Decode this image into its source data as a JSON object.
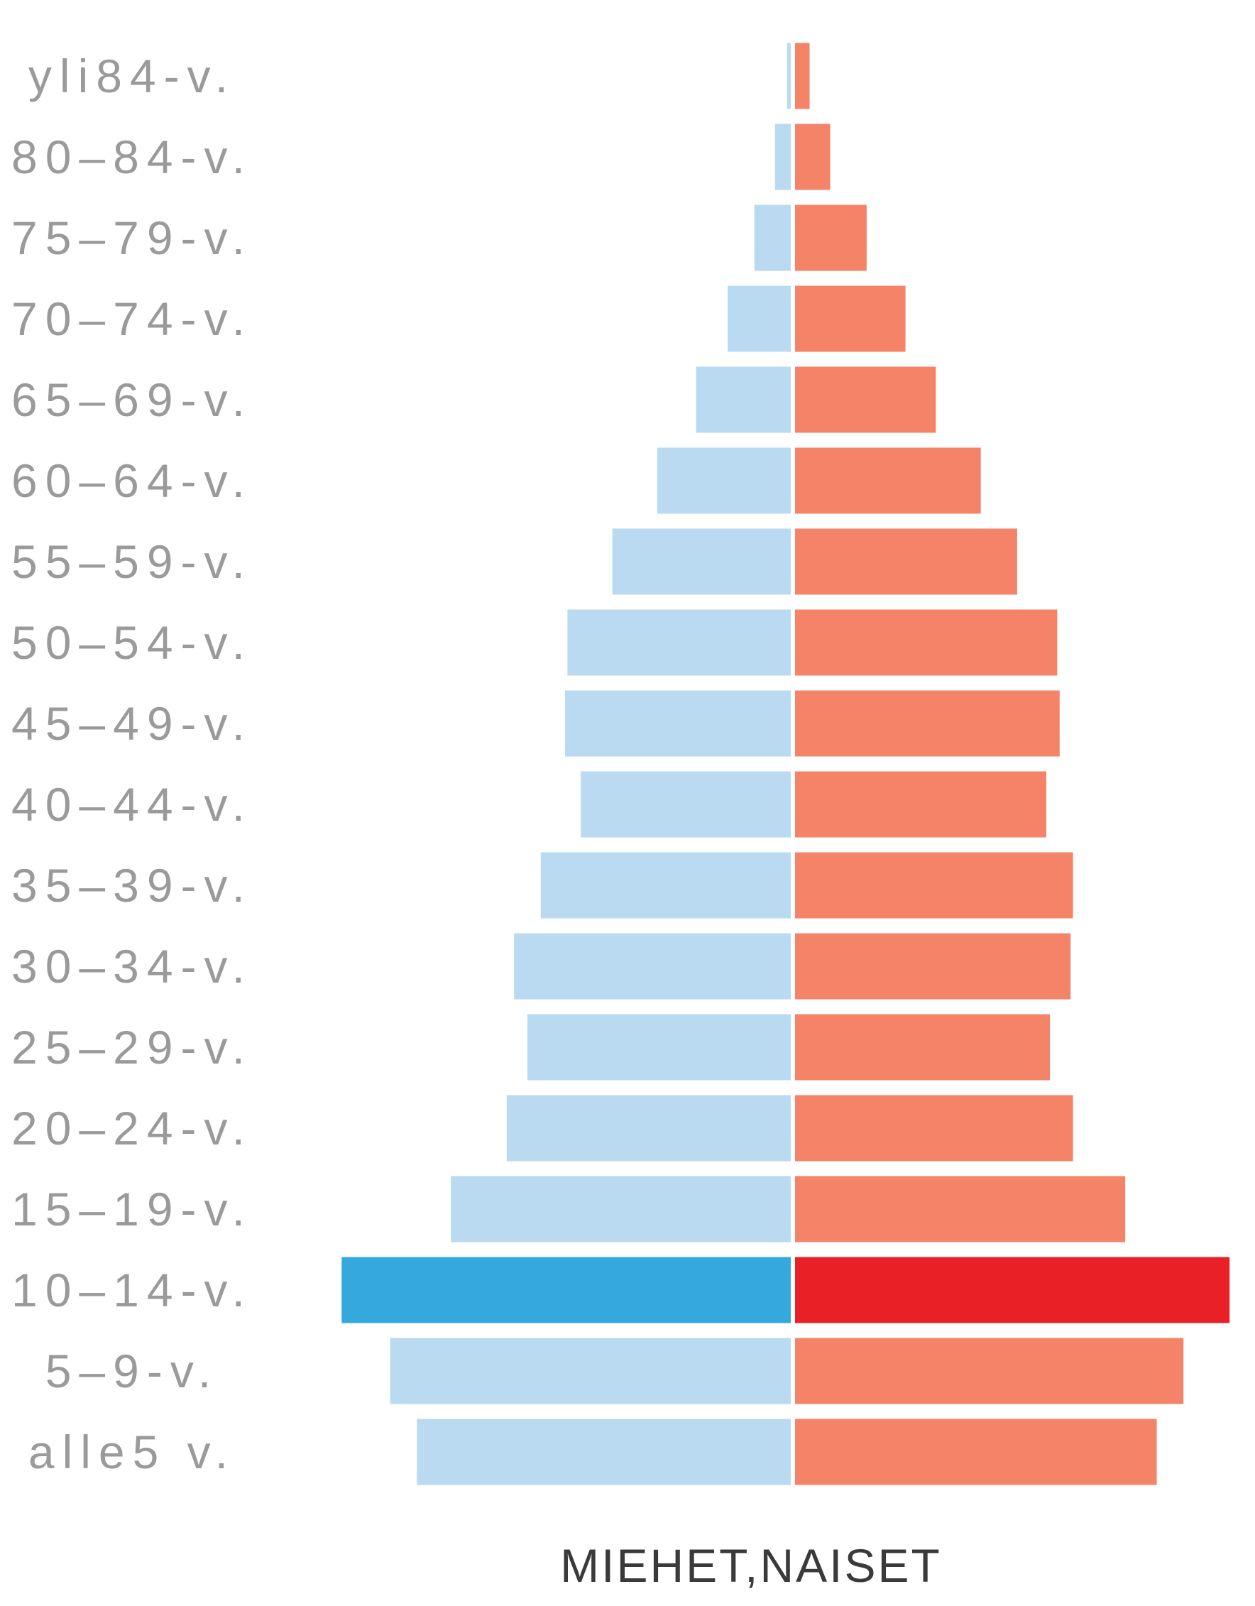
{
  "chart_data": {
    "type": "bar",
    "orientation": "horizontal",
    "layout": "population-pyramid",
    "categories": [
      "yli84-v.",
      "80–84-v.",
      "75–79-v.",
      "70–74-v.",
      "65–69-v.",
      "60–64-v.",
      "55–59-v.",
      "50–54-v.",
      "45–49-v.",
      "40–44-v.",
      "35–39-v.",
      "30–34-v.",
      "25–29-v.",
      "20–24-v.",
      "15–19-v.",
      "10–14-v.",
      "5–9-v.",
      "alle5 v."
    ],
    "series": [
      {
        "key": "men",
        "direction": "left",
        "color": "#b9daf1",
        "highlight_color": "#35a8dd",
        "values": [
          0.3,
          1.3,
          3.0,
          5.2,
          7.8,
          11.0,
          14.7,
          18.4,
          18.6,
          17.3,
          20.6,
          22.8,
          21.7,
          23.4,
          28.0,
          37.0,
          33.0,
          30.8
        ]
      },
      {
        "key": "women",
        "direction": "right",
        "color": "#f58368",
        "highlight_color": "#e92127",
        "values": [
          1.2,
          2.9,
          5.9,
          9.1,
          11.6,
          15.3,
          18.3,
          21.6,
          21.8,
          20.7,
          22.9,
          22.7,
          21.0,
          22.9,
          27.2,
          35.8,
          32.0,
          29.8
        ]
      }
    ],
    "highlight_category": "10–14-v.",
    "xlabel": "MIEHET,NAISET",
    "ylabel": "",
    "title": "",
    "grid": false,
    "legend": "none"
  }
}
